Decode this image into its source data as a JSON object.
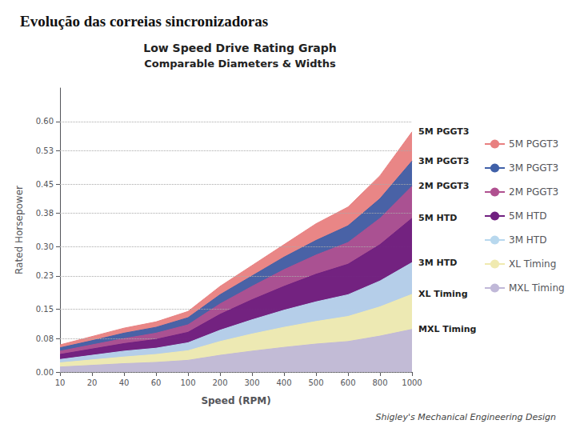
{
  "chart_data": {
    "type": "area",
    "title": "Evolução das correias sincronizadoras",
    "subtitle": "Shigley's Mechanical Engineering Design",
    "annotations": [
      "Low Speed Drive Rating Graph",
      "Comparable Diameters & Widths"
    ],
    "x_label": "Speed (RPM)",
    "y_label": "Rated Horsepower",
    "categories": [
      "10",
      "20",
      "40",
      "60",
      "100",
      "200",
      "300",
      "400",
      "500",
      "600",
      "800",
      "1000"
    ],
    "series": [
      {
        "name": "5M PGGT3",
        "color": "#e88080",
        "values": [
          0.065,
          0.085,
          0.105,
          0.12,
          0.145,
          0.205,
          0.255,
          0.305,
          0.355,
          0.395,
          0.47,
          0.575
        ]
      },
      {
        "name": "3M PGGT3",
        "color": "#4060a8",
        "values": [
          0.058,
          0.075,
          0.093,
          0.107,
          0.13,
          0.185,
          0.23,
          0.275,
          0.315,
          0.35,
          0.415,
          0.505
        ]
      },
      {
        "name": "2M PGGT3",
        "color": "#b05090",
        "values": [
          0.05,
          0.065,
          0.08,
          0.093,
          0.113,
          0.163,
          0.205,
          0.245,
          0.28,
          0.31,
          0.368,
          0.445
        ]
      },
      {
        "name": "5M HTD",
        "color": "#702080",
        "values": [
          0.042,
          0.055,
          0.068,
          0.078,
          0.095,
          0.138,
          0.173,
          0.205,
          0.234,
          0.258,
          0.305,
          0.368
        ]
      },
      {
        "name": "3M HTD",
        "color": "#b8d8ee",
        "values": [
          0.03,
          0.04,
          0.05,
          0.057,
          0.07,
          0.1,
          0.125,
          0.148,
          0.168,
          0.185,
          0.218,
          0.262
        ]
      },
      {
        "name": "XL Timing",
        "color": "#f0eab0",
        "values": [
          0.022,
          0.029,
          0.036,
          0.042,
          0.051,
          0.073,
          0.091,
          0.107,
          0.121,
          0.133,
          0.156,
          0.186
        ]
      },
      {
        "name": "MXL Timing",
        "color": "#c0b8d8",
        "values": [
          0.012,
          0.016,
          0.02,
          0.023,
          0.028,
          0.04,
          0.05,
          0.059,
          0.067,
          0.073,
          0.086,
          0.102
        ]
      }
    ],
    "ylim": [
      0,
      0.68
    ],
    "yticks": [
      {
        "value": 0,
        "label": "0.00"
      },
      0.08,
      0.15,
      0.23,
      {
        "value": 0.3,
        "label": "0.30"
      },
      0.38,
      0.45,
      0.53,
      {
        "value": 0.6,
        "label": "0.60"
      }
    ],
    "grid": true,
    "legend": "right",
    "stacked": false
  }
}
